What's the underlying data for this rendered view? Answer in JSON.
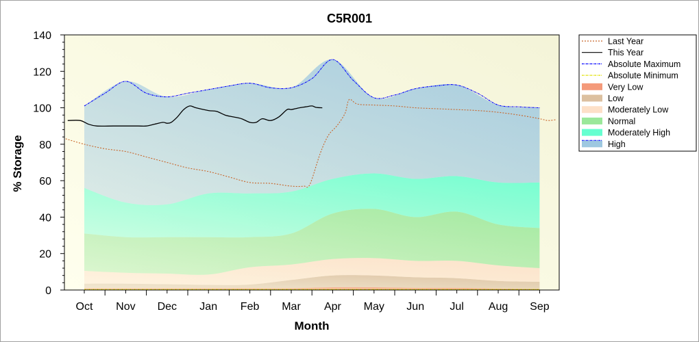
{
  "chart_data": {
    "type": "area",
    "title": "C5R001",
    "xlabel": "Month",
    "ylabel": "% Storage",
    "ylim": [
      0,
      140
    ],
    "yticks": [
      "0",
      "20",
      "40",
      "60",
      "80",
      "100",
      "120",
      "140"
    ],
    "categories": [
      "Oct",
      "Nov",
      "Dec",
      "Jan",
      "Feb",
      "Mar",
      "Apr",
      "May",
      "Jun",
      "Jul",
      "Aug",
      "Sep"
    ],
    "legend_position": "right",
    "bands": [
      {
        "name": "Very Low",
        "color": "#f49a7a",
        "upper": [
          [
            0,
            1
          ],
          [
            1,
            1
          ],
          [
            2,
            1
          ],
          [
            3,
            1
          ],
          [
            4,
            1
          ],
          [
            5,
            1
          ],
          [
            6,
            1.5
          ],
          [
            7,
            1.5
          ],
          [
            8,
            1.2
          ],
          [
            9,
            1.2
          ],
          [
            10,
            0.8
          ],
          [
            11,
            0.6
          ]
        ]
      },
      {
        "name": "Low",
        "color": "#dcc0a0",
        "upper": [
          [
            0,
            3.5
          ],
          [
            1,
            3.5
          ],
          [
            2,
            3.2
          ],
          [
            3,
            2.8
          ],
          [
            4,
            3
          ],
          [
            5,
            5.5
          ],
          [
            6,
            8
          ],
          [
            7,
            8
          ],
          [
            8,
            7
          ],
          [
            9,
            6.5
          ],
          [
            10,
            5
          ],
          [
            11,
            4.5
          ]
        ]
      },
      {
        "name": "Moderately Low",
        "color": "#fde0c8",
        "upper": [
          [
            0,
            10.5
          ],
          [
            1,
            9.5
          ],
          [
            2,
            9
          ],
          [
            3,
            8.5
          ],
          [
            4,
            12.5
          ],
          [
            5,
            14
          ],
          [
            6,
            17
          ],
          [
            7,
            17.5
          ],
          [
            8,
            16
          ],
          [
            9,
            16
          ],
          [
            10,
            13.5
          ],
          [
            11,
            12
          ]
        ]
      },
      {
        "name": "Normal",
        "color": "#9ae89a",
        "upper": [
          [
            0,
            31
          ],
          [
            1,
            29
          ],
          [
            2,
            29
          ],
          [
            3,
            29
          ],
          [
            4,
            29
          ],
          [
            5,
            31
          ],
          [
            6,
            42
          ],
          [
            7,
            44.5
          ],
          [
            8,
            40
          ],
          [
            9,
            43
          ],
          [
            10,
            36
          ],
          [
            11,
            34
          ]
        ]
      },
      {
        "name": "Moderately High",
        "color": "#66ffd0",
        "upper": [
          [
            0,
            56
          ],
          [
            1,
            48
          ],
          [
            2,
            47
          ],
          [
            3,
            53
          ],
          [
            4,
            53
          ],
          [
            5,
            54
          ],
          [
            6,
            61
          ],
          [
            7,
            64
          ],
          [
            8,
            61
          ],
          [
            9,
            62.5
          ],
          [
            10,
            59
          ],
          [
            11,
            59
          ]
        ]
      },
      {
        "name": "High",
        "color": "#9ec8e0",
        "upper": [
          [
            0,
            101
          ],
          [
            1,
            114.5
          ],
          [
            2,
            106
          ],
          [
            3,
            110
          ],
          [
            4,
            113.5
          ],
          [
            5,
            111
          ],
          [
            6,
            126.5
          ],
          [
            7,
            105.5
          ],
          [
            8,
            110.5
          ],
          [
            9,
            112.5
          ],
          [
            10,
            101.5
          ],
          [
            11,
            100
          ]
        ]
      }
    ],
    "series": [
      {
        "name": "Absolute Maximum",
        "color": "#0000ff",
        "style": "dash-dot",
        "points": [
          [
            0,
            101
          ],
          [
            0.5,
            108
          ],
          [
            1,
            114.5
          ],
          [
            1.5,
            108
          ],
          [
            2,
            106
          ],
          [
            2.5,
            108
          ],
          [
            3,
            110
          ],
          [
            3.5,
            112
          ],
          [
            4,
            113.5
          ],
          [
            4.5,
            111
          ],
          [
            5,
            111
          ],
          [
            5.5,
            116
          ],
          [
            6,
            126.5
          ],
          [
            6.5,
            115
          ],
          [
            7,
            105.5
          ],
          [
            7.5,
            107
          ],
          [
            8,
            110.5
          ],
          [
            8.5,
            112
          ],
          [
            9,
            112.5
          ],
          [
            9.5,
            108
          ],
          [
            10,
            101.5
          ],
          [
            10.5,
            100.5
          ],
          [
            11,
            100
          ]
        ]
      },
      {
        "name": "Absolute Minimum",
        "color": "#e0e000",
        "style": "dash-dot",
        "points": [
          [
            0,
            0.3
          ],
          [
            11,
            0.3
          ]
        ]
      },
      {
        "name": "Last Year",
        "color": "#c86428",
        "style": "dotted",
        "points": [
          [
            -0.45,
            83
          ],
          [
            0,
            80
          ],
          [
            0.5,
            77.5
          ],
          [
            1,
            76
          ],
          [
            1.5,
            73
          ],
          [
            2,
            70
          ],
          [
            2.5,
            67
          ],
          [
            3,
            65
          ],
          [
            3.5,
            62
          ],
          [
            4,
            59
          ],
          [
            4.5,
            58.5
          ],
          [
            5,
            57
          ],
          [
            5.3,
            57
          ],
          [
            5.45,
            58
          ],
          [
            5.7,
            75
          ],
          [
            5.9,
            85
          ],
          [
            6.1,
            90
          ],
          [
            6.3,
            97
          ],
          [
            6.4,
            104.5
          ],
          [
            6.6,
            102
          ],
          [
            7,
            101.5
          ],
          [
            7.5,
            101
          ],
          [
            8,
            100
          ],
          [
            8.5,
            99.5
          ],
          [
            9,
            99
          ],
          [
            9.5,
            98.5
          ],
          [
            10,
            97.5
          ],
          [
            10.5,
            96
          ],
          [
            11,
            94
          ],
          [
            11.2,
            93
          ],
          [
            11.4,
            93.5
          ]
        ]
      },
      {
        "name": "This Year",
        "color": "#000000",
        "style": "solid",
        "points": [
          [
            -0.4,
            93
          ],
          [
            -0.1,
            93
          ],
          [
            0.1,
            91
          ],
          [
            0.3,
            90
          ],
          [
            0.7,
            90
          ],
          [
            1,
            90
          ],
          [
            1.3,
            90
          ],
          [
            1.5,
            90
          ],
          [
            1.7,
            91
          ],
          [
            1.9,
            92
          ],
          [
            2,
            91.5
          ],
          [
            2.1,
            92
          ],
          [
            2.25,
            95
          ],
          [
            2.4,
            99
          ],
          [
            2.55,
            101
          ],
          [
            2.7,
            100
          ],
          [
            3,
            98.5
          ],
          [
            3.2,
            98
          ],
          [
            3.4,
            96
          ],
          [
            3.6,
            95
          ],
          [
            3.8,
            94
          ],
          [
            4,
            92
          ],
          [
            4.15,
            92
          ],
          [
            4.3,
            94
          ],
          [
            4.5,
            93
          ],
          [
            4.7,
            95
          ],
          [
            4.9,
            99
          ],
          [
            5,
            99
          ],
          [
            5.1,
            99.5
          ],
          [
            5.2,
            100
          ],
          [
            5.35,
            100.5
          ],
          [
            5.5,
            101
          ],
          [
            5.6,
            100.2
          ],
          [
            5.75,
            100
          ]
        ]
      }
    ]
  }
}
